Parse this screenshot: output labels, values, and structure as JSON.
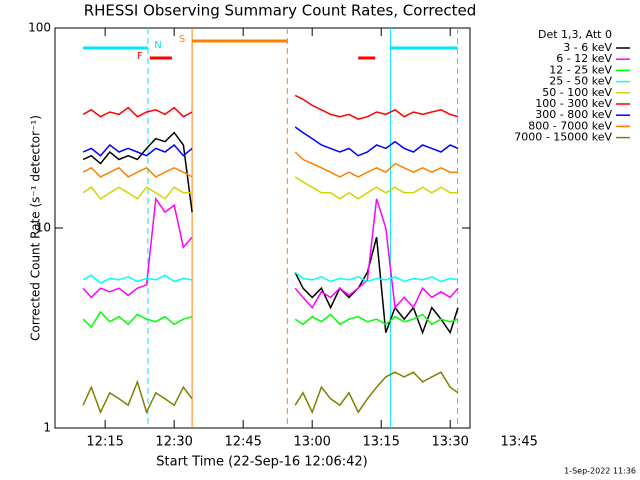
{
  "chart_data": {
    "type": "line",
    "title": "RHESSI Observing Summary Count Rates, Corrected",
    "x_label": "Start Time (22-Sep-16 12:06:42)",
    "y_label": "Corrected Count Rate (s⁻¹ detector⁻¹)",
    "legend_title": "Det 1,3, Att 0",
    "footer": "1-Sep-2022 11:36",
    "log_y": true,
    "xlim": [
      4.1,
      94.3
    ],
    "xticks": [
      {
        "value": 15,
        "label": "12:15"
      },
      {
        "value": 30,
        "label": "12:30"
      },
      {
        "value": 45,
        "label": "12:45"
      },
      {
        "value": 60,
        "label": "13:00"
      },
      {
        "value": 75,
        "label": "13:15"
      },
      {
        "value": 90,
        "label": "13:30"
      },
      {
        "value": 105,
        "label": "13:45"
      }
    ],
    "ylim": [
      1,
      100
    ],
    "yticks": [
      1,
      10,
      100
    ],
    "x": [
      10.2,
      12,
      14,
      16,
      18,
      20,
      22,
      24,
      26,
      28,
      30,
      32,
      33.9,
      45,
      56.3,
      58,
      60,
      62,
      64,
      66,
      68,
      70,
      72,
      74,
      76,
      78,
      80,
      82,
      84,
      86,
      88,
      90,
      91.7
    ],
    "series": [
      {
        "name": "3 - 6 keV",
        "color": "#000000",
        "values": [
          22,
          23,
          21,
          24,
          22,
          23,
          22,
          25,
          28,
          27,
          30,
          26,
          12,
          null,
          6,
          5,
          4.5,
          5,
          4,
          5,
          4.5,
          5,
          6,
          9,
          3,
          4,
          3.5,
          4,
          3,
          4,
          3.5,
          3,
          4
        ]
      },
      {
        "name": "6 - 12 keV",
        "color": "#ff00ff",
        "values": [
          5,
          4.5,
          5,
          4.8,
          5,
          4.6,
          5,
          5.2,
          14,
          12,
          13,
          8,
          9,
          null,
          5,
          4.5,
          4,
          4.8,
          4.5,
          5,
          4.6,
          5,
          5.5,
          14,
          10,
          4,
          4.5,
          4,
          5,
          4.5,
          4.8,
          4.5,
          5
        ]
      },
      {
        "name": "12 - 25 keV",
        "color": "#00ff00",
        "values": [
          3.5,
          3.2,
          3.8,
          3.4,
          3.6,
          3.3,
          3.7,
          3.5,
          3.4,
          3.6,
          3.3,
          3.5,
          3.6,
          null,
          3.5,
          3.3,
          3.6,
          3.4,
          3.7,
          3.3,
          3.5,
          3.6,
          3.4,
          3.5,
          3.3,
          3.6,
          3.4,
          3.5,
          3.7,
          3.3,
          3.5,
          3.4,
          3.5
        ]
      },
      {
        "name": "25 - 50 keV",
        "color": "#00ffff",
        "values": [
          5.5,
          5.8,
          5.3,
          5.6,
          5.5,
          5.7,
          5.4,
          5.6,
          5.5,
          5.8,
          5.4,
          5.6,
          5.5,
          null,
          6,
          5.6,
          5.5,
          5.7,
          5.4,
          5.6,
          5.5,
          5.7,
          5.4,
          5.6,
          5.5,
          5.7,
          5.4,
          5.6,
          5.5,
          5.7,
          5.4,
          5.6,
          5.5
        ]
      },
      {
        "name": "50 - 100 keV",
        "color": "#d4d400",
        "values": [
          15,
          16,
          14,
          15,
          16,
          15,
          14,
          16,
          15,
          14,
          16,
          15,
          15,
          null,
          18,
          17,
          16,
          15,
          15,
          14,
          15,
          14,
          15,
          16,
          15,
          16,
          15,
          15,
          16,
          15,
          16,
          15,
          15
        ]
      },
      {
        "name": "100 - 300 keV",
        "color": "#ff0000",
        "values": [
          37,
          39,
          36,
          38,
          37,
          40,
          36,
          38,
          39,
          37,
          40,
          36,
          38,
          null,
          46,
          44,
          41,
          39,
          37,
          36,
          37,
          35,
          36,
          38,
          37,
          39,
          36,
          38,
          37,
          38,
          39,
          37,
          36
        ]
      },
      {
        "name": "300 - 800 keV",
        "color": "#0000ff",
        "values": [
          24,
          25,
          23,
          26,
          24,
          25,
          24,
          23,
          25,
          24,
          26,
          23,
          25,
          null,
          32,
          30,
          28,
          26,
          25,
          24,
          25,
          23,
          24,
          26,
          25,
          27,
          25,
          24,
          26,
          25,
          24,
          26,
          25
        ]
      },
      {
        "name": "800 - 7000 keV",
        "color": "#ff8000",
        "values": [
          19,
          20,
          18,
          19,
          20,
          18,
          19,
          20,
          18,
          19,
          20,
          19,
          18,
          null,
          24,
          22,
          21,
          20,
          19,
          18,
          19,
          18,
          19,
          20,
          19,
          21,
          20,
          19,
          20,
          19,
          20,
          19,
          19
        ]
      },
      {
        "name": "7000 - 15000 keV",
        "color": "#808000",
        "values": [
          1.3,
          1.6,
          1.2,
          1.5,
          1.4,
          1.3,
          1.7,
          1.2,
          1.5,
          1.4,
          1.3,
          1.6,
          1.4,
          null,
          1.3,
          1.5,
          1.2,
          1.6,
          1.4,
          1.3,
          1.5,
          1.2,
          1.4,
          1.6,
          1.8,
          1.9,
          1.8,
          1.9,
          1.7,
          1.8,
          1.9,
          1.6,
          1.5
        ]
      }
    ],
    "flags": [
      {
        "name": "N",
        "color": "#00e5ff",
        "spans": [
          [
            10.2,
            24.3
          ],
          [
            77.0,
            91.6
          ]
        ]
      },
      {
        "name": "S",
        "color": "#ff8000",
        "spans": [
          [
            33.9,
            54.6
          ]
        ]
      },
      {
        "name": "F",
        "color": "#ff0000",
        "spans": [
          [
            24.7,
            29.5
          ],
          [
            70.0,
            73.7
          ]
        ]
      }
    ]
  }
}
